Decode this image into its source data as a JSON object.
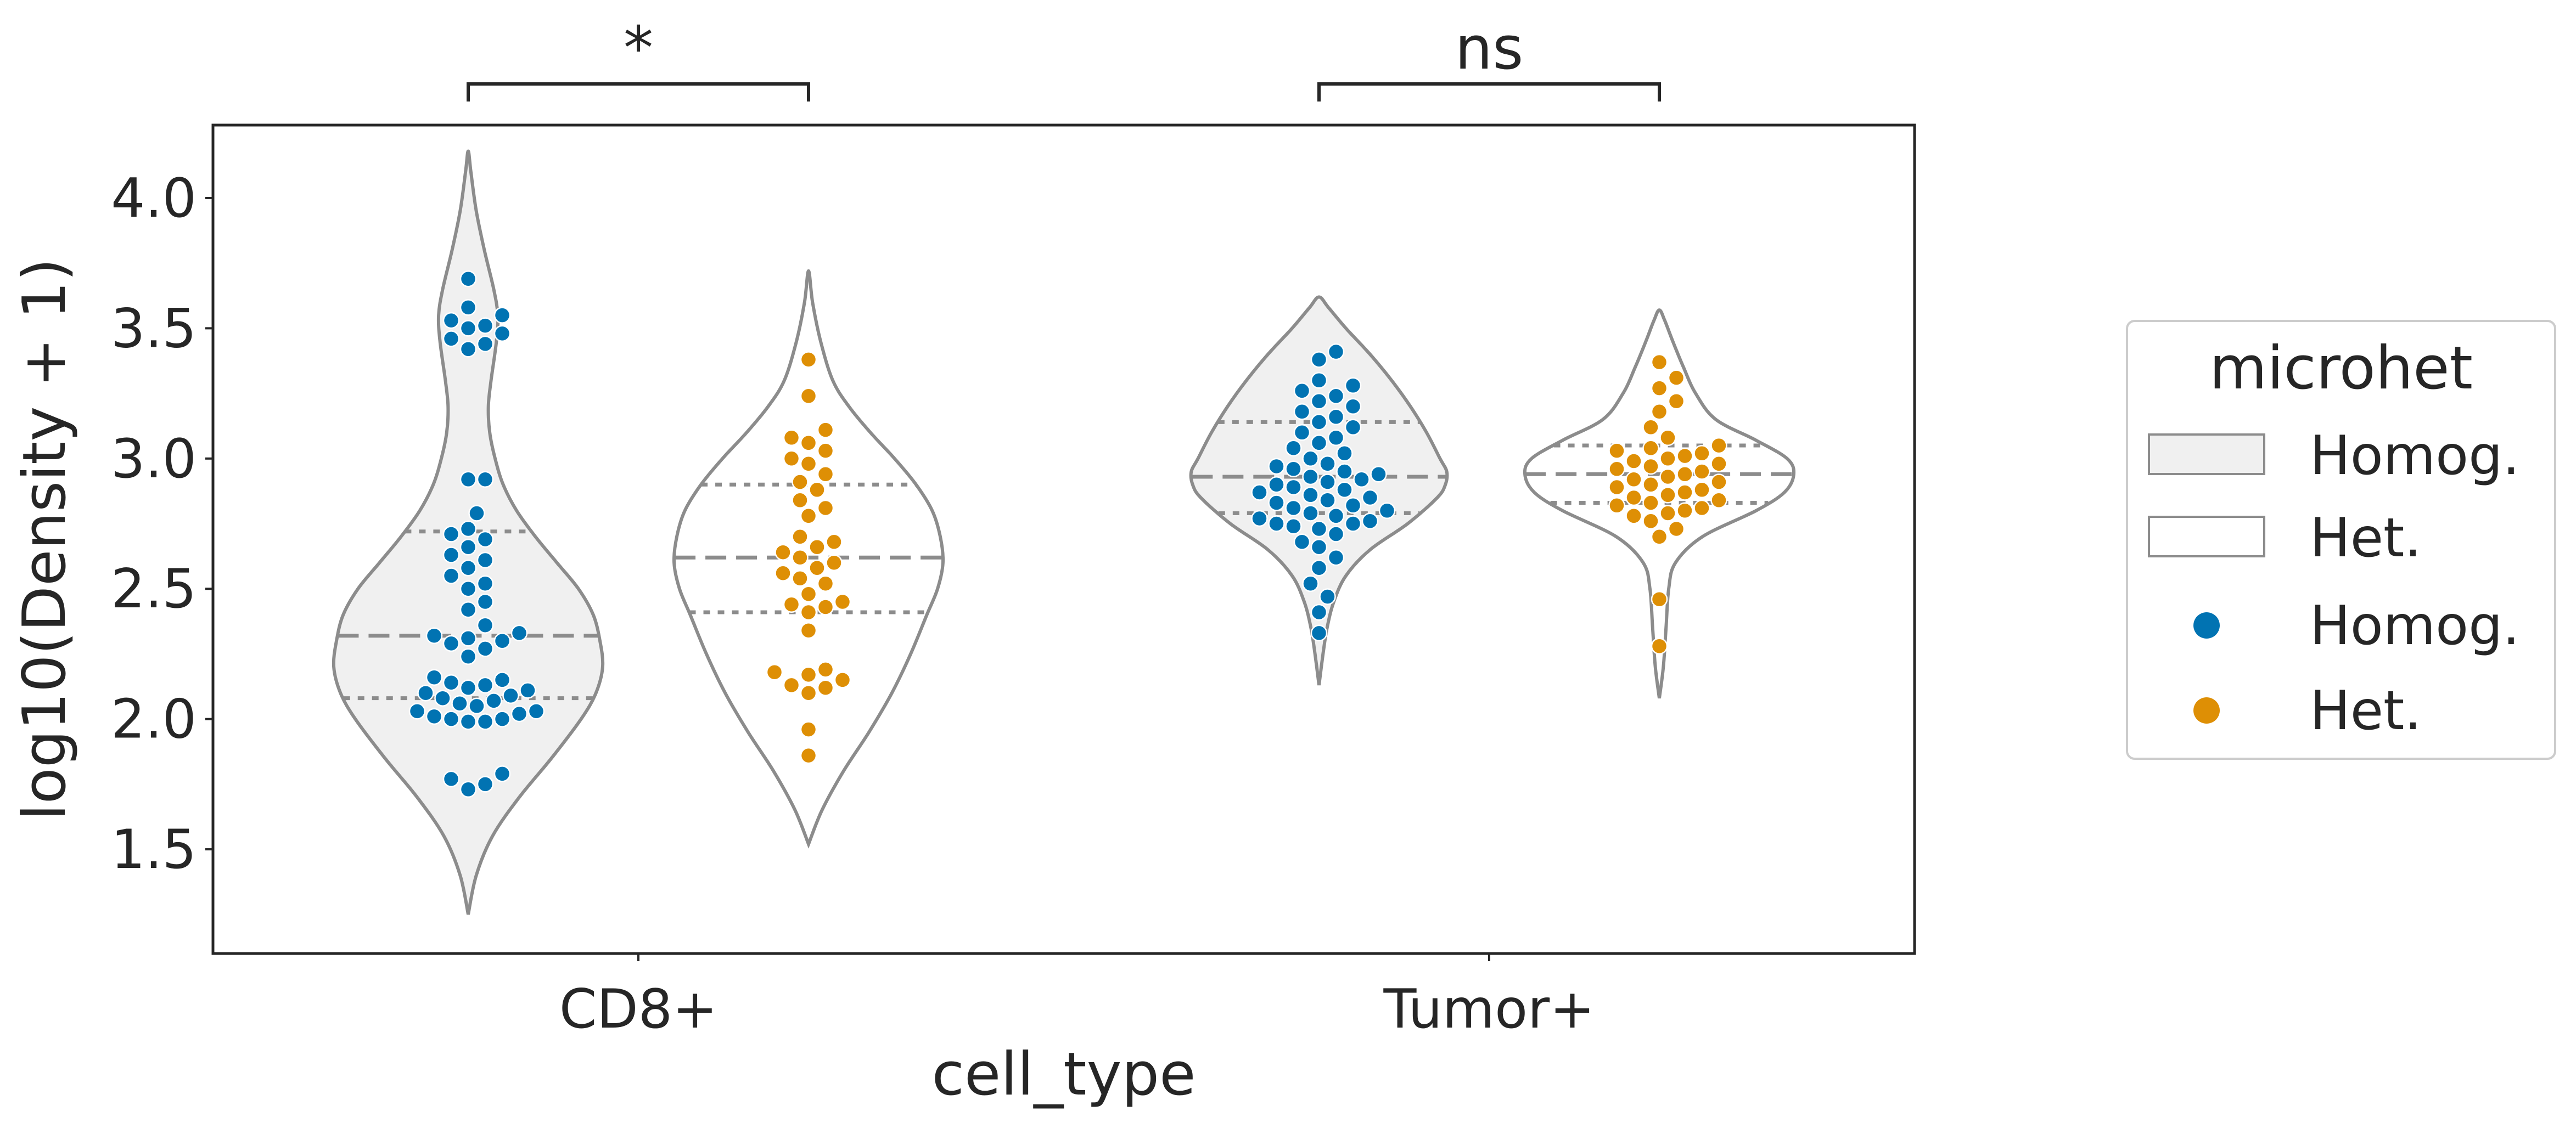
{
  "chart_data": {
    "type": "violin",
    "xlabel": "cell_type",
    "ylabel": "log10(Density + 1)",
    "categories": [
      "CD8+",
      "Tumor+"
    ],
    "ylim": [
      1.1,
      4.28
    ],
    "yticks": [
      1.5,
      2.0,
      2.5,
      3.0,
      3.5,
      4.0
    ],
    "grid": false,
    "legend": {
      "title": "microhet",
      "placement": "right",
      "entries": [
        {
          "label": "Homog.",
          "kind": "violin",
          "color": "#f0f0f0"
        },
        {
          "label": "Het.",
          "kind": "violin",
          "color": "#ffffff"
        },
        {
          "label": "Homog.",
          "kind": "point",
          "color": "#0173b2"
        },
        {
          "label": "Het.",
          "kind": "point",
          "color": "#de8f05"
        }
      ]
    },
    "colors": {
      "homog_points": "#0173b2",
      "het_points": "#de8f05",
      "homog_violin_fill": "#f0f0f0",
      "het_violin_fill": "#ffffff",
      "violin_edge": "#8c8c8c",
      "text": "#262626"
    },
    "annotations": [
      {
        "category": "CD8+",
        "text": "*"
      },
      {
        "category": "Tumor+",
        "text": "ns"
      }
    ],
    "groups": [
      {
        "category": "CD8+",
        "hue": "Homog.",
        "range": [
          1.25,
          4.18
        ],
        "quartiles": [
          2.08,
          2.32,
          2.72
        ],
        "density": [
          [
            1.25,
            0.0
          ],
          [
            1.4,
            0.06
          ],
          [
            1.55,
            0.18
          ],
          [
            1.7,
            0.38
          ],
          [
            1.85,
            0.62
          ],
          [
            2.0,
            0.84
          ],
          [
            2.1,
            0.95
          ],
          [
            2.2,
            1.0
          ],
          [
            2.3,
            0.98
          ],
          [
            2.4,
            0.93
          ],
          [
            2.5,
            0.82
          ],
          [
            2.6,
            0.66
          ],
          [
            2.7,
            0.5
          ],
          [
            2.8,
            0.36
          ],
          [
            2.9,
            0.26
          ],
          [
            3.0,
            0.2
          ],
          [
            3.1,
            0.16
          ],
          [
            3.2,
            0.15
          ],
          [
            3.3,
            0.17
          ],
          [
            3.45,
            0.21
          ],
          [
            3.55,
            0.22
          ],
          [
            3.65,
            0.19
          ],
          [
            3.8,
            0.12
          ],
          [
            3.95,
            0.06
          ],
          [
            4.1,
            0.02
          ],
          [
            4.18,
            0.0
          ]
        ],
        "points": [
          1.73,
          1.75,
          1.77,
          1.79,
          1.99,
          1.99,
          2.0,
          2.0,
          2.01,
          2.02,
          2.03,
          2.03,
          2.05,
          2.06,
          2.07,
          2.08,
          2.09,
          2.1,
          2.11,
          2.12,
          2.13,
          2.14,
          2.15,
          2.16,
          2.24,
          2.27,
          2.29,
          2.3,
          2.31,
          2.32,
          2.33,
          2.36,
          2.42,
          2.45,
          2.5,
          2.52,
          2.55,
          2.58,
          2.61,
          2.63,
          2.66,
          2.69,
          2.71,
          2.73,
          2.79,
          2.92,
          2.92,
          3.42,
          3.44,
          3.46,
          3.48,
          3.5,
          3.51,
          3.53,
          3.55,
          3.58,
          3.69
        ]
      },
      {
        "category": "CD8+",
        "hue": "Het.",
        "range": [
          1.52,
          3.72
        ],
        "quartiles": [
          2.41,
          2.62,
          2.9
        ],
        "density": [
          [
            1.52,
            0.0
          ],
          [
            1.65,
            0.1
          ],
          [
            1.8,
            0.26
          ],
          [
            1.95,
            0.45
          ],
          [
            2.1,
            0.62
          ],
          [
            2.25,
            0.76
          ],
          [
            2.4,
            0.88
          ],
          [
            2.5,
            0.96
          ],
          [
            2.6,
            1.0
          ],
          [
            2.7,
            0.98
          ],
          [
            2.8,
            0.92
          ],
          [
            2.9,
            0.8
          ],
          [
            3.0,
            0.64
          ],
          [
            3.1,
            0.46
          ],
          [
            3.2,
            0.3
          ],
          [
            3.3,
            0.18
          ],
          [
            3.45,
            0.09
          ],
          [
            3.6,
            0.03
          ],
          [
            3.72,
            0.0
          ]
        ],
        "points": [
          1.86,
          1.96,
          2.1,
          2.12,
          2.13,
          2.15,
          2.17,
          2.18,
          2.19,
          2.34,
          2.41,
          2.43,
          2.44,
          2.45,
          2.48,
          2.52,
          2.54,
          2.56,
          2.58,
          2.6,
          2.62,
          2.64,
          2.66,
          2.68,
          2.7,
          2.78,
          2.81,
          2.84,
          2.88,
          2.91,
          2.94,
          2.98,
          3.0,
          3.03,
          3.06,
          3.08,
          3.11,
          3.24,
          3.38
        ]
      },
      {
        "category": "Tumor+",
        "hue": "Homog.",
        "range": [
          2.13,
          3.62
        ],
        "quartiles": [
          2.79,
          2.93,
          3.14
        ],
        "density": [
          [
            2.13,
            0.0
          ],
          [
            2.25,
            0.03
          ],
          [
            2.35,
            0.06
          ],
          [
            2.45,
            0.11
          ],
          [
            2.55,
            0.2
          ],
          [
            2.65,
            0.38
          ],
          [
            2.75,
            0.66
          ],
          [
            2.85,
            0.88
          ],
          [
            2.9,
            0.94
          ],
          [
            2.95,
            0.95
          ],
          [
            3.0,
            0.9
          ],
          [
            3.1,
            0.8
          ],
          [
            3.2,
            0.68
          ],
          [
            3.3,
            0.54
          ],
          [
            3.4,
            0.38
          ],
          [
            3.5,
            0.2
          ],
          [
            3.58,
            0.07
          ],
          [
            3.62,
            0.0
          ]
        ],
        "points": [
          2.33,
          2.41,
          2.47,
          2.52,
          2.58,
          2.62,
          2.66,
          2.68,
          2.71,
          2.73,
          2.74,
          2.75,
          2.75,
          2.76,
          2.77,
          2.78,
          2.79,
          2.8,
          2.81,
          2.82,
          2.83,
          2.84,
          2.85,
          2.86,
          2.87,
          2.88,
          2.89,
          2.9,
          2.91,
          2.92,
          2.93,
          2.94,
          2.95,
          2.96,
          2.97,
          2.98,
          3.0,
          3.02,
          3.04,
          3.06,
          3.08,
          3.1,
          3.12,
          3.14,
          3.16,
          3.18,
          3.2,
          3.22,
          3.24,
          3.26,
          3.28,
          3.3,
          3.38,
          3.41
        ]
      },
      {
        "category": "Tumor+",
        "hue": "Het.",
        "range": [
          2.08,
          3.57
        ],
        "quartiles": [
          2.83,
          2.94,
          3.05
        ],
        "density": [
          [
            2.08,
            0.0
          ],
          [
            2.2,
            0.03
          ],
          [
            2.35,
            0.05
          ],
          [
            2.5,
            0.07
          ],
          [
            2.6,
            0.12
          ],
          [
            2.7,
            0.32
          ],
          [
            2.8,
            0.72
          ],
          [
            2.87,
            0.93
          ],
          [
            2.94,
            1.0
          ],
          [
            3.0,
            0.95
          ],
          [
            3.07,
            0.72
          ],
          [
            3.15,
            0.42
          ],
          [
            3.25,
            0.27
          ],
          [
            3.35,
            0.18
          ],
          [
            3.45,
            0.1
          ],
          [
            3.53,
            0.04
          ],
          [
            3.57,
            0.0
          ]
        ],
        "points": [
          2.28,
          2.46,
          2.7,
          2.73,
          2.76,
          2.78,
          2.79,
          2.8,
          2.81,
          2.82,
          2.83,
          2.84,
          2.85,
          2.86,
          2.87,
          2.88,
          2.89,
          2.9,
          2.91,
          2.92,
          2.93,
          2.94,
          2.95,
          2.96,
          2.97,
          2.98,
          2.99,
          3.0,
          3.01,
          3.02,
          3.03,
          3.04,
          3.05,
          3.08,
          3.12,
          3.18,
          3.22,
          3.27,
          3.31,
          3.37
        ]
      }
    ]
  }
}
